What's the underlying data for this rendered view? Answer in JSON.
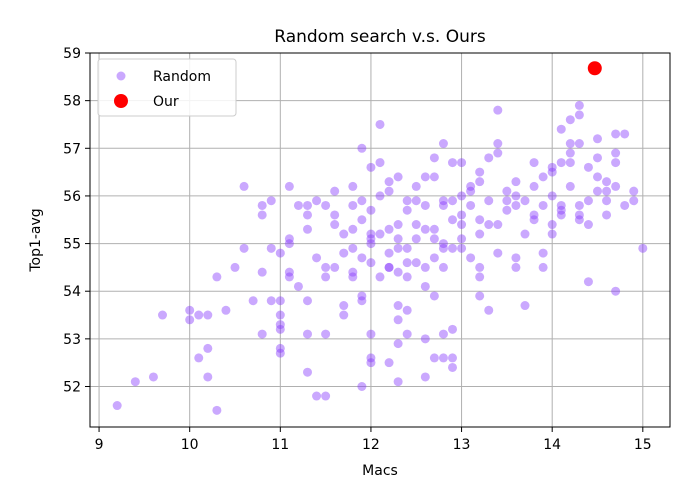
{
  "chart_data": {
    "type": "scatter",
    "title": "Random search v.s. Ours",
    "xlabel": "Macs",
    "ylabel": "Top1-avg",
    "xlim": [
      8.9,
      15.3
    ],
    "ylim": [
      51.15,
      59.0
    ],
    "xticks": [
      9,
      10,
      11,
      12,
      13,
      14,
      15
    ],
    "yticks": [
      52,
      53,
      54,
      55,
      56,
      57,
      58,
      59
    ],
    "grid": true,
    "legend_position": "top-left",
    "series": [
      {
        "name": "Random",
        "color": "#8a3ffc",
        "alpha": 0.45,
        "marker": "small-circle",
        "points": [
          [
            9.2,
            51.6
          ],
          [
            9.4,
            52.1
          ],
          [
            9.6,
            52.2
          ],
          [
            9.7,
            53.5
          ],
          [
            10.0,
            53.4
          ],
          [
            10.0,
            53.6
          ],
          [
            10.1,
            52.6
          ],
          [
            10.2,
            52.8
          ],
          [
            10.2,
            52.2
          ],
          [
            10.3,
            51.5
          ],
          [
            10.2,
            53.5
          ],
          [
            10.1,
            53.5
          ],
          [
            10.3,
            54.3
          ],
          [
            10.4,
            53.6
          ],
          [
            10.5,
            54.5
          ],
          [
            10.6,
            54.9
          ],
          [
            10.6,
            56.2
          ],
          [
            10.7,
            53.8
          ],
          [
            10.8,
            54.4
          ],
          [
            10.8,
            55.6
          ],
          [
            10.8,
            55.8
          ],
          [
            10.9,
            55.9
          ],
          [
            10.8,
            53.1
          ],
          [
            10.9,
            53.8
          ],
          [
            11.0,
            53.5
          ],
          [
            11.0,
            53.3
          ],
          [
            11.0,
            52.8
          ],
          [
            11.0,
            52.7
          ],
          [
            11.0,
            53.2
          ],
          [
            11.0,
            53.8
          ],
          [
            11.1,
            54.4
          ],
          [
            11.1,
            54.3
          ],
          [
            11.0,
            54.8
          ],
          [
            11.1,
            55.0
          ],
          [
            11.1,
            55.1
          ],
          [
            11.1,
            56.2
          ],
          [
            11.2,
            55.8
          ],
          [
            11.2,
            54.1
          ],
          [
            11.3,
            53.8
          ],
          [
            11.3,
            53.1
          ],
          [
            11.3,
            52.3
          ],
          [
            11.3,
            55.3
          ],
          [
            11.3,
            55.6
          ],
          [
            11.3,
            55.8
          ],
          [
            11.4,
            55.9
          ],
          [
            11.4,
            51.8
          ],
          [
            11.5,
            51.8
          ],
          [
            11.5,
            53.1
          ],
          [
            11.5,
            54.5
          ],
          [
            11.5,
            54.3
          ],
          [
            11.5,
            55.8
          ],
          [
            11.6,
            56.1
          ],
          [
            11.6,
            55.4
          ],
          [
            11.6,
            55.6
          ],
          [
            11.6,
            54.5
          ],
          [
            11.7,
            54.8
          ],
          [
            11.7,
            53.5
          ],
          [
            11.7,
            53.7
          ],
          [
            11.8,
            54.9
          ],
          [
            11.8,
            54.4
          ],
          [
            11.8,
            54.3
          ],
          [
            11.8,
            55.8
          ],
          [
            11.8,
            56.2
          ],
          [
            11.8,
            55.3
          ],
          [
            11.9,
            55.5
          ],
          [
            11.9,
            57.0
          ],
          [
            11.9,
            52.0
          ],
          [
            11.9,
            53.8
          ],
          [
            11.9,
            53.9
          ],
          [
            11.9,
            54.7
          ],
          [
            12.0,
            53.1
          ],
          [
            12.0,
            52.6
          ],
          [
            12.0,
            52.5
          ],
          [
            12.0,
            55.1
          ],
          [
            12.0,
            55.0
          ],
          [
            12.0,
            55.2
          ],
          [
            12.0,
            55.7
          ],
          [
            12.0,
            56.6
          ],
          [
            12.1,
            57.5
          ],
          [
            12.1,
            55.2
          ],
          [
            12.1,
            54.3
          ],
          [
            12.1,
            56.0
          ],
          [
            12.2,
            54.5
          ],
          [
            12.2,
            54.8
          ],
          [
            12.2,
            56.1
          ],
          [
            12.2,
            55.3
          ],
          [
            12.2,
            54.5
          ],
          [
            12.2,
            52.5
          ],
          [
            12.3,
            52.1
          ],
          [
            12.3,
            52.9
          ],
          [
            12.3,
            53.4
          ],
          [
            12.3,
            53.7
          ],
          [
            12.3,
            54.4
          ],
          [
            12.3,
            55.1
          ],
          [
            12.3,
            55.4
          ],
          [
            12.3,
            56.4
          ],
          [
            12.4,
            55.9
          ],
          [
            12.4,
            55.7
          ],
          [
            12.4,
            54.6
          ],
          [
            12.4,
            54.3
          ],
          [
            12.4,
            54.9
          ],
          [
            12.4,
            53.1
          ],
          [
            12.4,
            53.6
          ],
          [
            12.5,
            54.6
          ],
          [
            12.5,
            55.1
          ],
          [
            12.5,
            55.4
          ],
          [
            12.5,
            56.2
          ],
          [
            12.6,
            56.4
          ],
          [
            12.6,
            55.8
          ],
          [
            12.6,
            55.3
          ],
          [
            12.6,
            54.5
          ],
          [
            12.6,
            54.1
          ],
          [
            12.6,
            53.0
          ],
          [
            12.6,
            52.2
          ],
          [
            12.7,
            52.6
          ],
          [
            12.7,
            53.9
          ],
          [
            12.7,
            54.7
          ],
          [
            12.7,
            55.1
          ],
          [
            12.7,
            55.3
          ],
          [
            12.7,
            56.4
          ],
          [
            12.7,
            56.8
          ],
          [
            12.8,
            57.1
          ],
          [
            12.8,
            55.9
          ],
          [
            12.8,
            55.8
          ],
          [
            12.8,
            55.0
          ],
          [
            12.8,
            54.9
          ],
          [
            12.8,
            53.1
          ],
          [
            12.8,
            52.6
          ],
          [
            12.9,
            52.4
          ],
          [
            12.9,
            52.6
          ],
          [
            12.9,
            53.2
          ],
          [
            12.9,
            54.9
          ],
          [
            12.9,
            55.5
          ],
          [
            12.9,
            55.9
          ],
          [
            12.9,
            56.7
          ],
          [
            13.0,
            56.7
          ],
          [
            13.0,
            56.0
          ],
          [
            13.0,
            55.4
          ],
          [
            13.0,
            55.1
          ],
          [
            13.0,
            54.9
          ],
          [
            13.1,
            54.7
          ],
          [
            13.1,
            55.8
          ],
          [
            13.1,
            56.1
          ],
          [
            13.1,
            56.2
          ],
          [
            13.2,
            54.5
          ],
          [
            13.2,
            54.3
          ],
          [
            13.2,
            55.2
          ],
          [
            13.2,
            55.5
          ],
          [
            13.2,
            56.3
          ],
          [
            13.2,
            56.5
          ],
          [
            13.3,
            55.9
          ],
          [
            13.3,
            55.4
          ],
          [
            13.3,
            53.6
          ],
          [
            13.3,
            56.8
          ],
          [
            13.4,
            57.1
          ],
          [
            13.4,
            57.8
          ],
          [
            13.4,
            56.9
          ],
          [
            13.4,
            55.4
          ],
          [
            13.4,
            54.8
          ],
          [
            13.5,
            55.7
          ],
          [
            13.5,
            55.9
          ],
          [
            13.6,
            56.3
          ],
          [
            13.6,
            55.8
          ],
          [
            13.6,
            54.7
          ],
          [
            13.6,
            54.5
          ],
          [
            13.7,
            55.2
          ],
          [
            13.7,
            55.9
          ],
          [
            13.7,
            53.7
          ],
          [
            13.8,
            56.7
          ],
          [
            13.8,
            56.2
          ],
          [
            13.8,
            55.5
          ],
          [
            13.8,
            55.6
          ],
          [
            13.9,
            55.8
          ],
          [
            13.9,
            54.8
          ],
          [
            13.9,
            54.5
          ],
          [
            14.0,
            55.4
          ],
          [
            14.0,
            55.2
          ],
          [
            14.0,
            56.0
          ],
          [
            14.0,
            56.5
          ],
          [
            14.0,
            56.6
          ],
          [
            14.1,
            56.7
          ],
          [
            14.1,
            55.6
          ],
          [
            14.1,
            55.8
          ],
          [
            14.1,
            57.4
          ],
          [
            14.2,
            57.1
          ],
          [
            14.2,
            57.6
          ],
          [
            14.2,
            56.9
          ],
          [
            14.2,
            56.7
          ],
          [
            14.2,
            56.2
          ],
          [
            14.3,
            55.6
          ],
          [
            14.3,
            55.5
          ],
          [
            14.3,
            55.8
          ],
          [
            14.3,
            57.1
          ],
          [
            14.3,
            57.9
          ],
          [
            14.3,
            57.7
          ],
          [
            14.4,
            56.6
          ],
          [
            14.4,
            55.9
          ],
          [
            14.4,
            55.4
          ],
          [
            14.4,
            54.2
          ],
          [
            14.5,
            56.1
          ],
          [
            14.5,
            56.4
          ],
          [
            14.5,
            56.8
          ],
          [
            14.5,
            57.2
          ],
          [
            14.6,
            55.9
          ],
          [
            14.6,
            55.6
          ],
          [
            14.6,
            56.1
          ],
          [
            14.6,
            56.3
          ],
          [
            14.7,
            57.3
          ],
          [
            14.7,
            56.9
          ],
          [
            14.7,
            56.7
          ],
          [
            14.7,
            56.2
          ],
          [
            14.7,
            54.0
          ],
          [
            14.8,
            55.8
          ],
          [
            14.8,
            57.3
          ],
          [
            14.9,
            55.9
          ],
          [
            14.9,
            56.1
          ],
          [
            15.0,
            54.9
          ],
          [
            12.3,
            54.9
          ],
          [
            12.1,
            56.7
          ],
          [
            11.9,
            55.9
          ],
          [
            12.0,
            54.6
          ],
          [
            13.0,
            55.6
          ],
          [
            13.5,
            56.1
          ],
          [
            10.9,
            54.9
          ],
          [
            11.7,
            55.2
          ],
          [
            12.5,
            55.9
          ],
          [
            13.2,
            53.9
          ],
          [
            14.1,
            55.7
          ],
          [
            13.9,
            56.4
          ],
          [
            12.8,
            54.5
          ],
          [
            11.4,
            54.7
          ],
          [
            12.2,
            56.3
          ],
          [
            13.6,
            56.0
          ]
        ]
      },
      {
        "name": "Our",
        "color": "#ff0000",
        "alpha": 1.0,
        "marker": "large-circle",
        "points": [
          [
            14.47,
            58.68
          ]
        ]
      }
    ]
  }
}
